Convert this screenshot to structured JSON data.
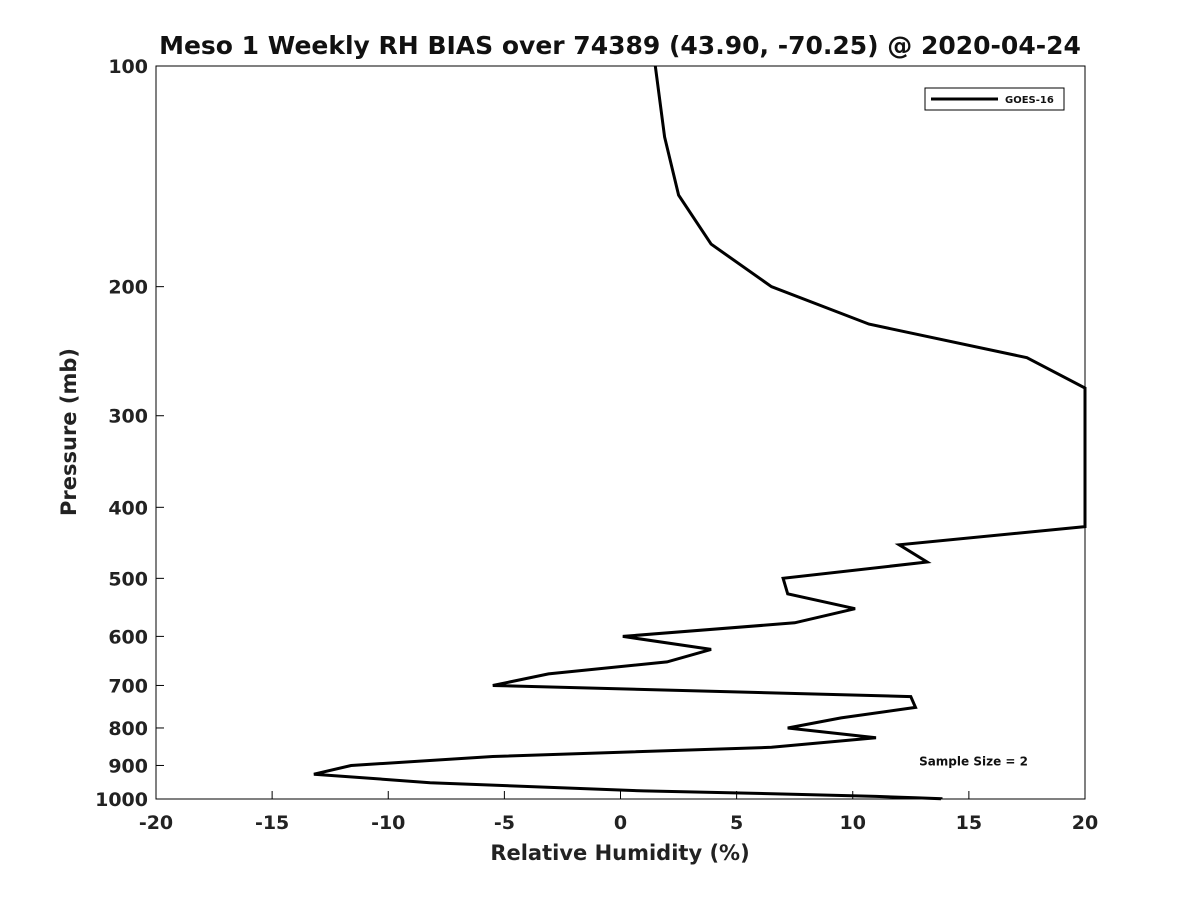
{
  "chart_data": {
    "type": "line",
    "title": "Meso 1 Weekly RH BIAS over 74389 (43.90, -70.25) @ 2020-04-24",
    "xlabel": "Relative Humidity (%)",
    "ylabel": "Pressure (mb)",
    "xlim": [
      -20,
      20
    ],
    "ylim": [
      100,
      1000
    ],
    "y_scale": "log",
    "y_reversed": true,
    "grid": false,
    "legend_position": "top-right",
    "x_ticks": [
      -20,
      -15,
      -10,
      -5,
      0,
      5,
      10,
      15,
      20
    ],
    "y_ticks": [
      100,
      200,
      300,
      400,
      500,
      600,
      700,
      800,
      900,
      1000
    ],
    "series": [
      {
        "name": "GOES-16",
        "color": "#000000",
        "points": [
          [
            1.5,
            100
          ],
          [
            1.9,
            125
          ],
          [
            2.5,
            150
          ],
          [
            3.9,
            175
          ],
          [
            6.5,
            200
          ],
          [
            10.7,
            225
          ],
          [
            17.5,
            250
          ],
          [
            20,
            275
          ],
          [
            20,
            425
          ],
          [
            12.0,
            450
          ],
          [
            13.2,
            475
          ],
          [
            7.0,
            500
          ],
          [
            7.2,
            525
          ],
          [
            10.1,
            550
          ],
          [
            7.5,
            575
          ],
          [
            0.1,
            600
          ],
          [
            3.9,
            625
          ],
          [
            2.0,
            650
          ],
          [
            -3.1,
            675
          ],
          [
            -5.5,
            700
          ],
          [
            12.5,
            725
          ],
          [
            12.7,
            750
          ],
          [
            9.5,
            775
          ],
          [
            7.2,
            800
          ],
          [
            11.0,
            825
          ],
          [
            6.5,
            850
          ],
          [
            -5.5,
            875
          ],
          [
            -11.6,
            900
          ],
          [
            -13.2,
            925
          ],
          [
            -8.2,
            950
          ],
          [
            1.0,
            975
          ],
          [
            7.4,
            985
          ],
          [
            11.0,
            992
          ],
          [
            12.7,
            996
          ],
          [
            13.8,
            999
          ],
          [
            13.8,
            1000
          ]
        ]
      }
    ],
    "annotations": [
      {
        "text": "Sample Size = 2",
        "x": 15.2,
        "y": 900
      }
    ]
  }
}
